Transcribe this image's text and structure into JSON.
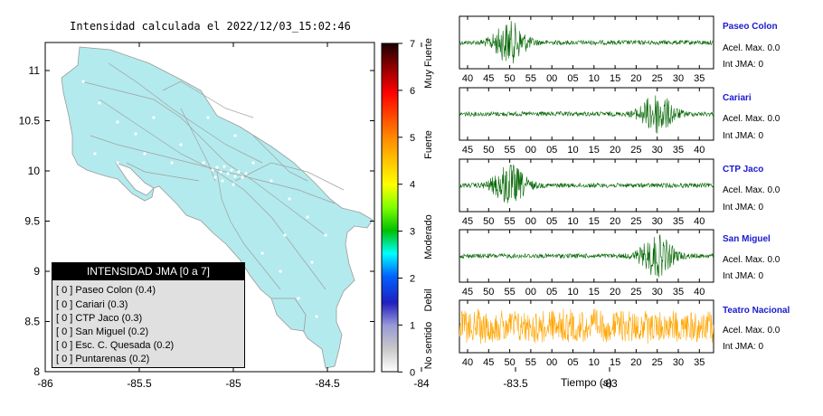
{
  "map": {
    "title": "Intensidad calculada el 2022/12/03_15:02:46",
    "lon_ticks": [
      "-86",
      "-85.5",
      "-85",
      "-84.5",
      "-84",
      "-83.5",
      "-83"
    ],
    "lat_ticks": [
      "11",
      "10.5",
      "10",
      "9.5",
      "9",
      "8.5",
      "8"
    ]
  },
  "colorbar": {
    "ticks": [
      "7",
      "6",
      "5",
      "4",
      "3",
      "2",
      "1",
      "0"
    ],
    "labels": [
      "Muy Fuerte",
      "Fuerte",
      "Moderado",
      "Debil",
      "No sentido"
    ]
  },
  "legend": {
    "header": "INTENSIDAD JMA [0 a 7]",
    "rows": [
      "[ 0 ] Paseo Colon (0.4)",
      "[ 0 ] Cariari (0.3)",
      "[ 0 ] CTP Jaco (0.3)",
      "[ 0 ] San Miguel (0.2)",
      "[ 0 ] Esc. C. Quesada (0.2)",
      "[ 0 ] Puntarenas (0.2)"
    ]
  },
  "stations": [
    {
      "name": "Paseo Colon",
      "acc": "Acel. Max. 0.0",
      "jma": "Int JMA: 0",
      "color": "#006400",
      "ticks": [
        "40",
        "45",
        "50",
        "55",
        "00",
        "05",
        "10",
        "15",
        "20",
        "25",
        "30",
        "35"
      ]
    },
    {
      "name": "Cariari",
      "acc": "Acel. Max. 0.0",
      "jma": "Int JMA: 0",
      "color": "#006400",
      "ticks": [
        "45",
        "50",
        "55",
        "00",
        "05",
        "10",
        "15",
        "20",
        "25",
        "30",
        "35",
        "40"
      ]
    },
    {
      "name": "CTP Jaco",
      "acc": "Acel. Max. 0.0",
      "jma": "Int JMA: 0",
      "color": "#006400",
      "ticks": [
        "45",
        "50",
        "55",
        "00",
        "05",
        "10",
        "15",
        "20",
        "25",
        "30",
        "35",
        "40"
      ]
    },
    {
      "name": "San Miguel",
      "acc": "Acel. Max. 0.0",
      "jma": "Int JMA: 0",
      "color": "#006400",
      "ticks": [
        "45",
        "50",
        "55",
        "00",
        "05",
        "10",
        "15",
        "20",
        "25",
        "30",
        "35",
        "40"
      ]
    },
    {
      "name": "Teatro Nacional",
      "acc": "Acel. Max. 0.0",
      "jma": "Int JMA: 0",
      "color": "#ffa500",
      "ticks": [
        "40",
        "45",
        "50",
        "55",
        "00",
        "05",
        "10",
        "15",
        "20",
        "25",
        "30",
        "35"
      ]
    }
  ],
  "chart_data": {
    "type": "line",
    "xlabel": "Tiempo (s)",
    "series": [
      {
        "name": "Paseo Colon",
        "burst_at": "50"
      },
      {
        "name": "Cariari",
        "burst_at": "30"
      },
      {
        "name": "CTP Jaco",
        "burst_at": "55"
      },
      {
        "name": "San Miguel",
        "burst_at": "30"
      },
      {
        "name": "Teatro Nacional",
        "burst_at": "none"
      }
    ]
  }
}
